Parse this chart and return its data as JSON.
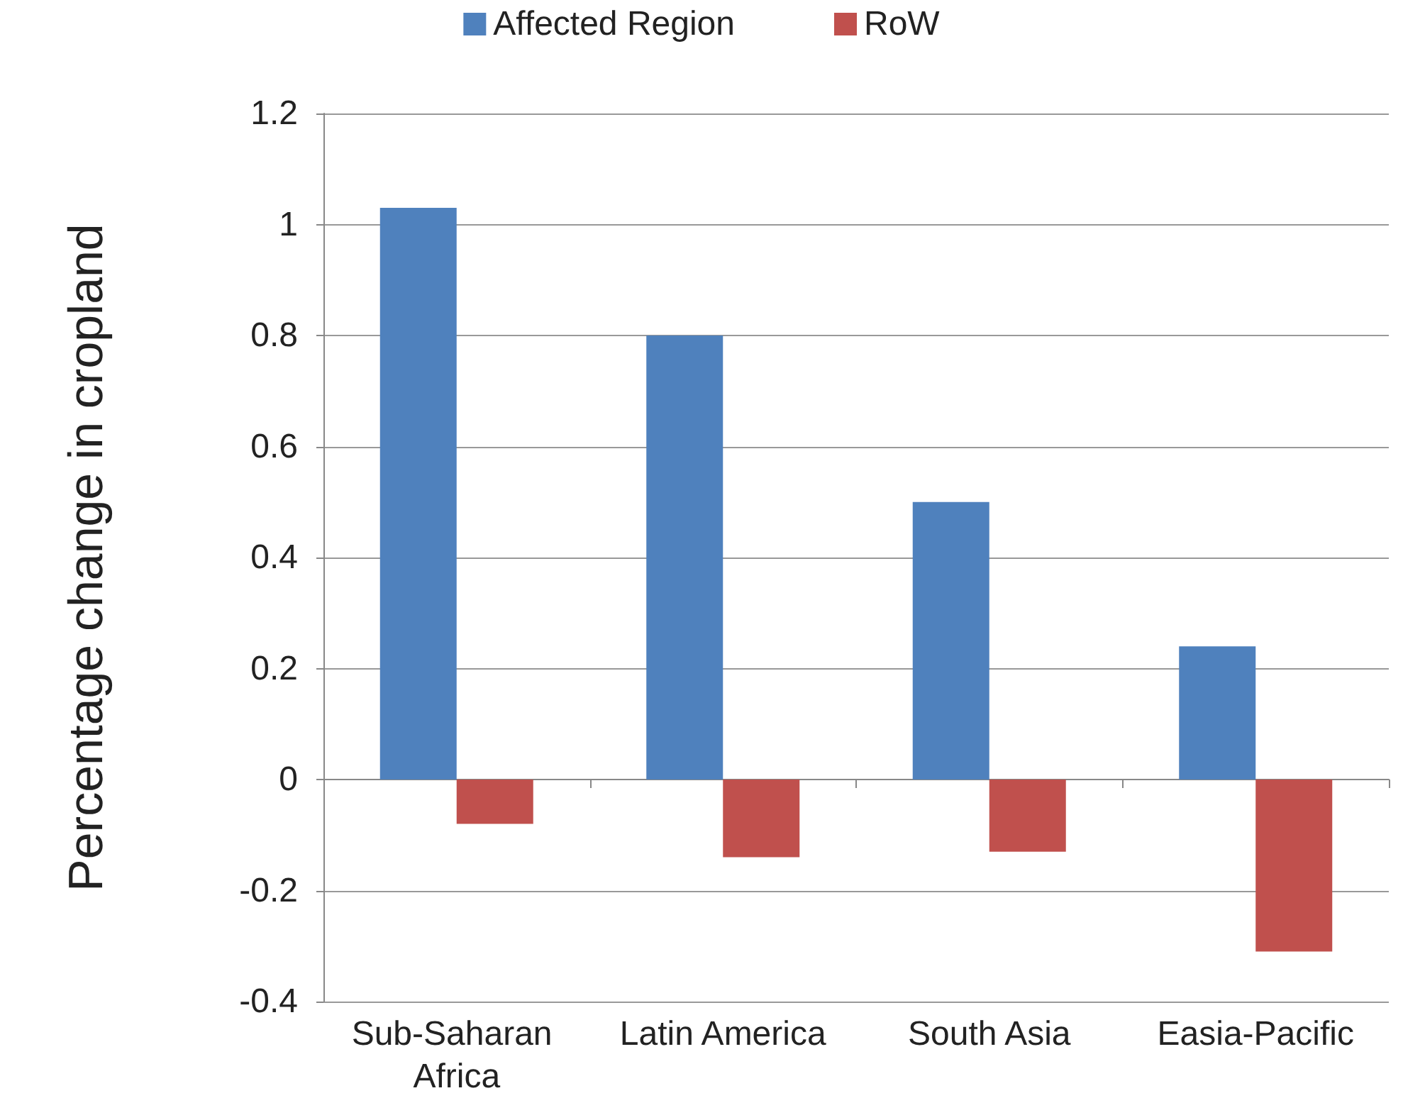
{
  "chart_data": {
    "type": "bar",
    "ylabel": "Percentage change in cropland",
    "categories": [
      "Sub-Saharan Africa",
      "Latin America",
      "South Asia",
      "Easia-Pacific"
    ],
    "series": [
      {
        "name": "Affected Region",
        "color": "#4f81bd",
        "values": [
          1.03,
          0.8,
          0.5,
          0.24
        ]
      },
      {
        "name": "RoW",
        "color": "#c0504d",
        "values": [
          -0.08,
          -0.14,
          -0.13,
          -0.31
        ]
      }
    ],
    "ylim": [
      -0.4,
      1.2
    ],
    "yticks": [
      -0.4,
      -0.2,
      0,
      0.2,
      0.4,
      0.6,
      0.8,
      1,
      1.2
    ],
    "grid": "y",
    "legend": "top"
  }
}
